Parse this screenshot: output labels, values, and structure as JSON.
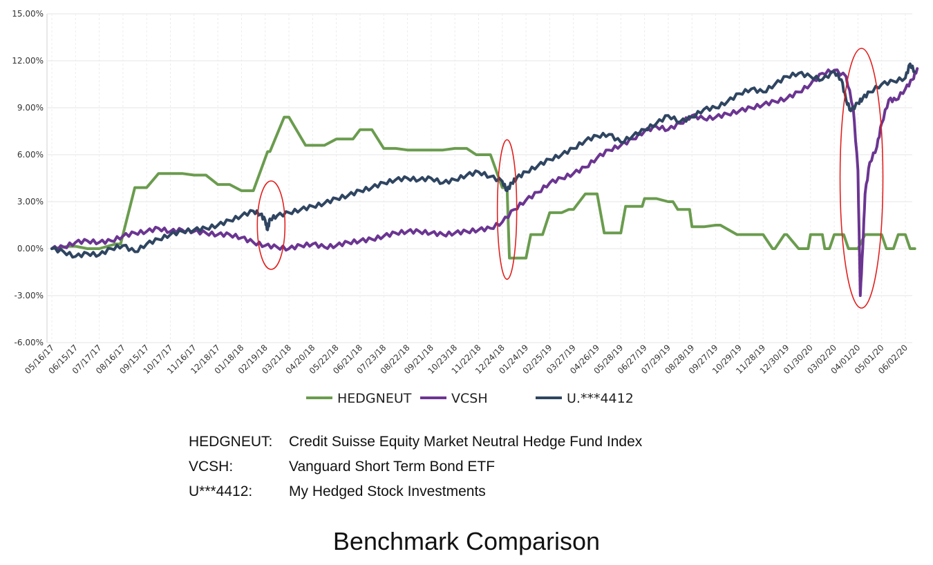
{
  "chart_data": {
    "type": "line",
    "y_ticks": [
      "15.00%",
      "12.00%",
      "9.00%",
      "6.00%",
      "3.00%",
      "0.00%",
      "-3.00%",
      "-6.00%"
    ],
    "ylim": [
      -6,
      15
    ],
    "x_ticks": [
      "05/16/17",
      "06/15/17",
      "07/17/17",
      "08/16/17",
      "09/15/17",
      "10/17/17",
      "11/16/17",
      "12/18/17",
      "01/18/18",
      "02/19/18",
      "03/21/18",
      "04/20/18",
      "05/22/18",
      "06/21/18",
      "07/23/18",
      "08/22/18",
      "09/21/18",
      "10/23/18",
      "11/22/18",
      "12/24/18",
      "01/24/19",
      "02/25/19",
      "03/27/19",
      "04/26/19",
      "05/28/19",
      "06/27/19",
      "07/29/19",
      "08/28/19",
      "09/27/19",
      "10/29/19",
      "11/28/19",
      "12/30/19",
      "01/30/20",
      "03/02/20",
      "04/01/20",
      "05/01/20",
      "06/02/20"
    ],
    "grid": true,
    "legend_position": "bottom",
    "series": [
      {
        "name": "HEDGNEUT",
        "color": "#6a9c4e",
        "x": [
          0,
          0.7,
          1.0,
          1.5,
          2.0,
          2.7,
          2.9,
          3.5,
          4.0,
          4.5,
          5.0,
          5.5,
          6.0,
          6.5,
          7.0,
          7.5,
          8.0,
          8.5,
          9.1,
          9.2,
          9.8,
          10.0,
          10.7,
          11.0,
          11.5,
          12.0,
          12.7,
          13.0,
          13.5,
          14.0,
          14.5,
          15.0,
          15.5,
          16.0,
          16.5,
          17.0,
          17.5,
          17.9,
          18.0,
          18.5,
          19.0,
          19.2,
          19.3,
          19.8,
          20.0,
          20.2,
          20.4,
          20.7,
          21.0,
          21.5,
          21.8,
          22.0,
          22.5,
          23.0,
          23.3,
          23.4,
          23.9,
          24.0,
          24.2,
          24.3,
          24.9,
          25.0,
          25.5,
          26.0,
          26.2,
          26.4,
          26.9,
          27.0,
          27.5,
          28.0,
          28.2,
          28.9,
          29.0,
          29.5,
          30.0,
          30.4,
          30.5,
          30.9,
          31.0,
          31.5,
          31.9,
          32.0,
          32.5,
          32.6,
          32.8,
          33.0,
          33.4,
          33.6,
          34.0,
          34.3,
          34.5,
          35.0,
          35.2,
          35.5,
          35.7,
          36.0,
          36.2,
          36.4
        ],
        "values": [
          0.0,
          0.15,
          0.15,
          0.0,
          0.0,
          0.3,
          0.3,
          3.9,
          3.9,
          4.8,
          4.8,
          4.8,
          4.7,
          4.7,
          4.1,
          4.1,
          3.7,
          3.7,
          6.2,
          6.2,
          8.4,
          8.4,
          6.6,
          6.6,
          6.6,
          7.0,
          7.0,
          7.6,
          7.6,
          6.4,
          6.4,
          6.3,
          6.3,
          6.3,
          6.3,
          6.4,
          6.4,
          6.0,
          6.0,
          6.0,
          3.9,
          3.9,
          -0.6,
          -0.6,
          -0.6,
          0.9,
          0.9,
          0.9,
          2.3,
          2.3,
          2.5,
          2.5,
          3.5,
          3.5,
          1.0,
          1.0,
          1.0,
          1.0,
          2.7,
          2.7,
          2.7,
          3.2,
          3.2,
          3.0,
          3.0,
          2.5,
          2.5,
          1.4,
          1.4,
          1.5,
          1.5,
          0.9,
          0.9,
          0.9,
          0.9,
          0.0,
          0.0,
          0.9,
          0.9,
          0.0,
          0.0,
          0.9,
          0.9,
          0.0,
          0.0,
          0.9,
          0.9,
          0.0,
          0.0,
          0.9,
          0.9,
          0.9,
          0.0,
          0.0,
          0.9,
          0.9,
          0.0,
          0.0
        ]
      },
      {
        "name": "VCSH",
        "color": "#6b3591",
        "x": [
          0,
          0.5,
          1.0,
          1.5,
          2.0,
          2.5,
          3.0,
          3.5,
          4.0,
          4.5,
          5.0,
          5.5,
          6.0,
          6.5,
          7.0,
          7.5,
          8.0,
          8.5,
          9.0,
          9.5,
          10.0,
          10.5,
          11.0,
          11.5,
          12.0,
          12.5,
          13.0,
          13.5,
          14.0,
          14.5,
          15.0,
          15.5,
          16.0,
          16.5,
          17.0,
          17.5,
          18.0,
          18.5,
          19.0,
          19.5,
          20.0,
          20.5,
          21.0,
          21.5,
          22.0,
          22.5,
          23.0,
          23.5,
          24.0,
          24.5,
          25.0,
          25.5,
          26.0,
          26.5,
          27.0,
          27.5,
          28.0,
          28.5,
          29.0,
          29.5,
          30.0,
          30.5,
          31.0,
          31.5,
          32.0,
          32.5,
          33.0,
          33.5,
          33.8,
          34.0,
          34.1,
          34.2,
          34.3,
          34.5,
          34.8,
          35.0,
          35.3,
          35.6,
          36.0,
          36.3,
          36.5
        ],
        "values": [
          0.0,
          0.1,
          0.4,
          0.5,
          0.4,
          0.5,
          0.8,
          1.0,
          1.1,
          1.3,
          1.1,
          1.2,
          1.1,
          1.0,
          0.9,
          0.9,
          0.7,
          0.4,
          0.2,
          0.1,
          0.0,
          0.2,
          0.3,
          0.1,
          0.2,
          0.4,
          0.5,
          0.6,
          0.8,
          1.0,
          1.1,
          1.1,
          1.0,
          0.9,
          1.0,
          1.1,
          1.2,
          1.3,
          1.7,
          2.5,
          3.1,
          3.6,
          4.2,
          4.5,
          4.8,
          5.2,
          5.8,
          6.3,
          6.6,
          7.0,
          7.5,
          7.8,
          7.6,
          8.0,
          8.5,
          8.3,
          8.4,
          8.6,
          8.8,
          9.0,
          9.2,
          9.4,
          9.6,
          10.0,
          10.5,
          11.2,
          11.4,
          11.0,
          9.0,
          5.0,
          -3.0,
          0.0,
          3.5,
          5.5,
          6.5,
          8.0,
          9.5,
          9.5,
          10.2,
          10.8,
          11.5
        ]
      },
      {
        "name": "U.***4412",
        "color": "#2f4561",
        "x": [
          0,
          0.5,
          1.0,
          1.5,
          2.0,
          2.5,
          3.0,
          3.5,
          4.0,
          4.5,
          5.0,
          5.5,
          6.0,
          6.5,
          7.0,
          7.5,
          8.0,
          8.5,
          8.8,
          9.0,
          9.1,
          9.2,
          9.5,
          10.0,
          10.5,
          11.0,
          11.5,
          12.0,
          12.5,
          13.0,
          13.5,
          14.0,
          14.5,
          15.0,
          15.5,
          16.0,
          16.5,
          17.0,
          17.5,
          18.0,
          18.5,
          19.0,
          19.2,
          19.4,
          19.6,
          20.0,
          20.5,
          21.0,
          21.5,
          22.0,
          22.5,
          23.0,
          23.5,
          24.0,
          24.5,
          25.0,
          25.5,
          26.0,
          26.5,
          27.0,
          27.5,
          28.0,
          28.5,
          29.0,
          29.5,
          30.0,
          30.5,
          31.0,
          31.5,
          32.0,
          32.5,
          33.0,
          33.3,
          33.5,
          33.7,
          34.0,
          34.2,
          34.5,
          35.0,
          35.5,
          36.0,
          36.2,
          36.4
        ],
        "values": [
          0.0,
          -0.2,
          -0.5,
          -0.3,
          -0.4,
          0.0,
          0.2,
          -0.2,
          0.3,
          0.6,
          0.9,
          1.1,
          1.2,
          1.3,
          1.5,
          1.8,
          2.1,
          2.4,
          2.2,
          1.8,
          1.2,
          1.9,
          2.1,
          2.3,
          2.5,
          2.7,
          2.9,
          3.2,
          3.4,
          3.7,
          3.9,
          4.2,
          4.4,
          4.5,
          4.4,
          4.5,
          4.2,
          4.4,
          4.7,
          4.9,
          4.6,
          4.3,
          3.7,
          4.2,
          4.5,
          4.9,
          5.3,
          5.7,
          6.0,
          6.4,
          6.9,
          7.2,
          7.3,
          6.8,
          7.2,
          7.6,
          8.0,
          8.5,
          8.1,
          8.4,
          8.9,
          9.0,
          9.4,
          9.9,
          10.2,
          10.0,
          10.5,
          11.0,
          11.2,
          11.0,
          10.8,
          11.3,
          10.8,
          9.5,
          8.8,
          9.3,
          9.6,
          10.0,
          10.5,
          10.7,
          10.9,
          11.8,
          11.3
        ]
      }
    ],
    "x_index_note_absent": ""
  },
  "legend": [
    {
      "label": "HEDGNEUT",
      "color": "#6a9c4e"
    },
    {
      "label": "VCSH",
      "color": "#6b3591"
    },
    {
      "label": "U.***4412",
      "color": "#2f4561"
    }
  ],
  "highlight_color": "#e0201e",
  "notes": [
    {
      "key": "HEDGNEUT:",
      "value": "Credit Suisse Equity Market Neutral Hedge Fund Index"
    },
    {
      "key": "VCSH:",
      "value": "Vanguard Short Term Bond ETF"
    },
    {
      "key": "U***4412:",
      "value": "My Hedged Stock Investments"
    }
  ],
  "caption": "Benchmark Comparison"
}
